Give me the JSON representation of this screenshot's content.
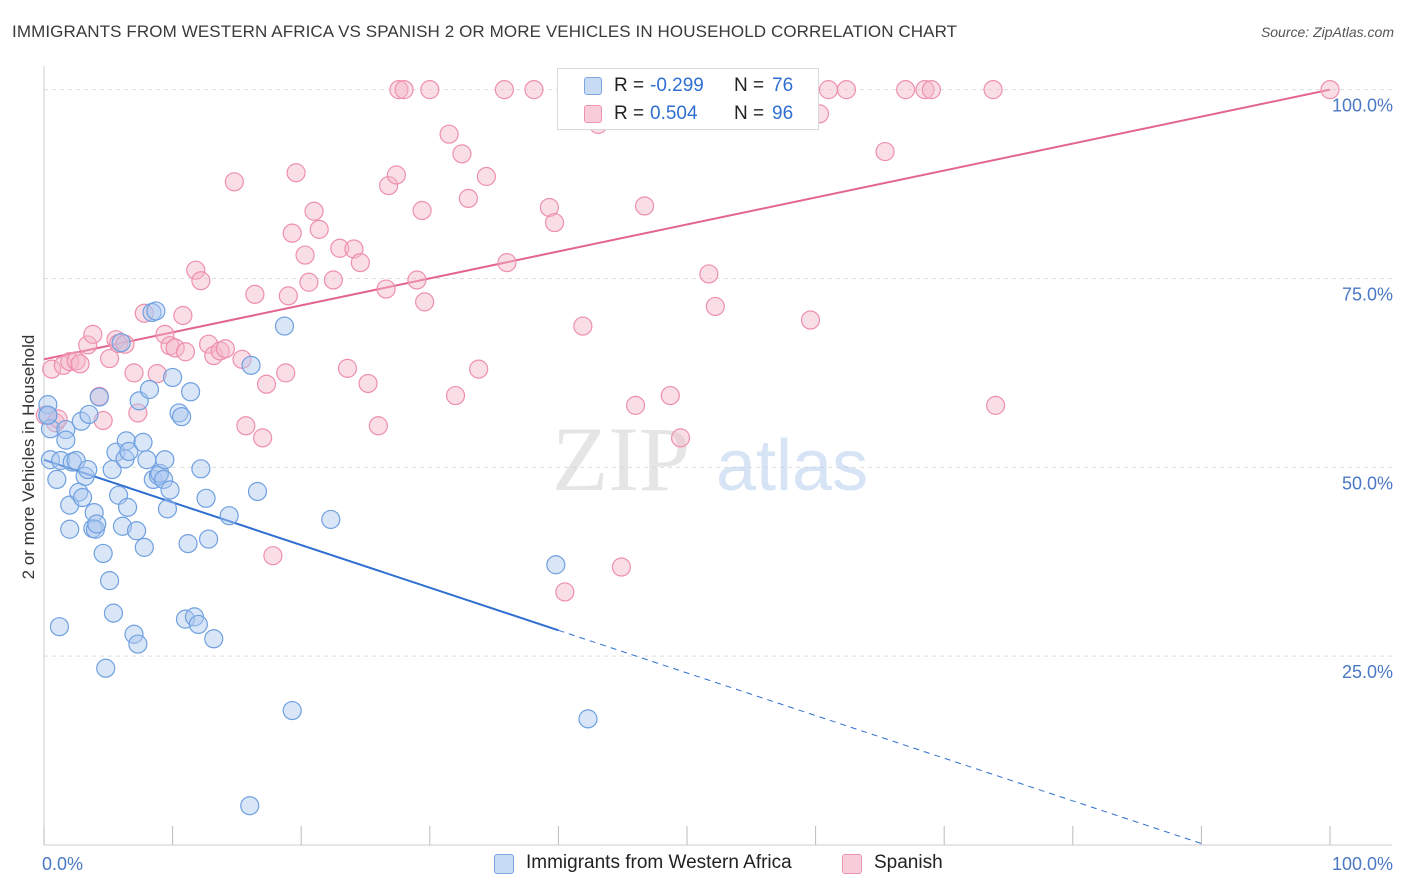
{
  "title": "IMMIGRANTS FROM WESTERN AFRICA VS SPANISH 2 OR MORE VEHICLES IN HOUSEHOLD CORRELATION CHART",
  "source": "Source: ZipAtlas.com",
  "watermark": {
    "zip": "ZIP",
    "atlas": "atlas"
  },
  "legend_top": {
    "rows": [
      {
        "r_label": "R =",
        "r_value": "-0.299",
        "n_label": "N =",
        "n_value": "76",
        "color": "#aac7ef"
      },
      {
        "r_label": "R =",
        "r_value": "0.504",
        "n_label": "N =",
        "n_value": "96",
        "color": "#f5b6c8"
      }
    ]
  },
  "legend_bottom": [
    {
      "label": "Immigrants from Western Africa",
      "color": "#aac7ef"
    },
    {
      "label": "Spanish",
      "color": "#f5b6c8"
    }
  ],
  "chart_data": {
    "type": "scatter",
    "title": "IMMIGRANTS FROM WESTERN AFRICA VS SPANISH 2 OR MORE VEHICLES IN HOUSEHOLD CORRELATION CHART",
    "xlabel": "",
    "ylabel": "2 or more Vehicles in Household",
    "xlim": [
      0,
      100
    ],
    "ylim": [
      0,
      102.6
    ],
    "x_tick_labels": [
      {
        "value": 0,
        "label": "0.0%"
      },
      {
        "value": 100,
        "label": "100.0%"
      }
    ],
    "y_tick_labels": [
      {
        "value": 25,
        "label": "25.0%"
      },
      {
        "value": 50,
        "label": "50.0%"
      },
      {
        "value": 75,
        "label": "75.0%"
      },
      {
        "value": 100,
        "label": "100.0%"
      }
    ],
    "x_minor_ticks": [
      0,
      10,
      20,
      30,
      40,
      50,
      60,
      70,
      80,
      90,
      100
    ],
    "series": [
      {
        "name": "Immigrants from Western Africa",
        "color": "#6fa0e0",
        "fill": "#aac7ef",
        "trend": {
          "x0": 0,
          "y0": 51.0,
          "x_solid_end": 40.0,
          "x1": 90.0,
          "y1": 0.2,
          "color": "#2f6fd1"
        },
        "points": [
          [
            0.3,
            58.3
          ],
          [
            0.3,
            56.9
          ],
          [
            0.5,
            55.1
          ],
          [
            0.5,
            51.0
          ],
          [
            1.0,
            48.4
          ],
          [
            1.2,
            28.9
          ],
          [
            1.3,
            50.9
          ],
          [
            1.7,
            55.0
          ],
          [
            1.7,
            53.6
          ],
          [
            2.0,
            41.8
          ],
          [
            2.0,
            45.0
          ],
          [
            2.2,
            50.7
          ],
          [
            2.5,
            50.9
          ],
          [
            2.7,
            46.7
          ],
          [
            2.9,
            56.1
          ],
          [
            3.0,
            46.0
          ],
          [
            3.2,
            48.8
          ],
          [
            3.4,
            49.7
          ],
          [
            3.5,
            57.0
          ],
          [
            3.8,
            41.9
          ],
          [
            3.9,
            44.0
          ],
          [
            4.0,
            41.8
          ],
          [
            4.1,
            42.5
          ],
          [
            4.3,
            59.3
          ],
          [
            4.6,
            38.6
          ],
          [
            4.8,
            23.4
          ],
          [
            5.1,
            35.0
          ],
          [
            5.3,
            49.7
          ],
          [
            5.4,
            30.7
          ],
          [
            5.6,
            52.0
          ],
          [
            5.8,
            46.3
          ],
          [
            6.1,
            42.2
          ],
          [
            6.3,
            51.1
          ],
          [
            6.4,
            53.5
          ],
          [
            6.5,
            44.7
          ],
          [
            6.6,
            52.1
          ],
          [
            7.0,
            27.9
          ],
          [
            7.2,
            41.6
          ],
          [
            7.3,
            26.6
          ],
          [
            7.4,
            58.8
          ],
          [
            7.7,
            53.3
          ],
          [
            7.8,
            39.4
          ],
          [
            8.0,
            51.0
          ],
          [
            8.2,
            60.3
          ],
          [
            8.4,
            70.5
          ],
          [
            8.5,
            48.4
          ],
          [
            8.7,
            70.7
          ],
          [
            8.9,
            48.9
          ],
          [
            9.0,
            49.2
          ],
          [
            9.3,
            48.4
          ],
          [
            9.4,
            51.0
          ],
          [
            9.6,
            44.5
          ],
          [
            9.8,
            47.0
          ],
          [
            10.0,
            61.9
          ],
          [
            10.5,
            57.2
          ],
          [
            10.7,
            56.7
          ],
          [
            11.0,
            29.9
          ],
          [
            11.2,
            39.9
          ],
          [
            11.4,
            60.0
          ],
          [
            11.7,
            30.2
          ],
          [
            12.0,
            29.2
          ],
          [
            12.2,
            49.8
          ],
          [
            12.6,
            45.9
          ],
          [
            12.8,
            40.5
          ],
          [
            13.2,
            27.3
          ],
          [
            14.4,
            43.6
          ],
          [
            16.0,
            5.2
          ],
          [
            16.1,
            63.5
          ],
          [
            16.6,
            46.8
          ],
          [
            18.7,
            68.7
          ],
          [
            19.3,
            17.8
          ],
          [
            22.3,
            43.1
          ],
          [
            39.8,
            37.1
          ],
          [
            42.3,
            16.7
          ],
          [
            0.3,
            56.9
          ],
          [
            6.0,
            66.5
          ]
        ]
      },
      {
        "name": "Spanish",
        "color": "#ee8fad",
        "fill": "#f5b6c8",
        "trend": {
          "x0": 0,
          "y0": 64.3,
          "x1": 100,
          "y1": 100.0,
          "color": "#e2648f"
        },
        "points": [
          [
            0.1,
            56.9
          ],
          [
            0.6,
            63.0
          ],
          [
            0.9,
            55.9
          ],
          [
            1.1,
            56.4
          ],
          [
            1.5,
            63.5
          ],
          [
            2.0,
            64.0
          ],
          [
            2.5,
            64.1
          ],
          [
            2.8,
            63.7
          ],
          [
            3.4,
            66.2
          ],
          [
            3.8,
            67.6
          ],
          [
            4.3,
            59.4
          ],
          [
            4.6,
            56.2
          ],
          [
            5.1,
            64.4
          ],
          [
            5.6,
            66.9
          ],
          [
            5.8,
            66.4
          ],
          [
            6.3,
            66.3
          ],
          [
            7.0,
            62.5
          ],
          [
            7.3,
            57.2
          ],
          [
            7.8,
            70.4
          ],
          [
            8.8,
            62.4
          ],
          [
            9.4,
            67.6
          ],
          [
            9.8,
            66.1
          ],
          [
            10.2,
            65.8
          ],
          [
            10.8,
            70.1
          ],
          [
            11.0,
            65.3
          ],
          [
            11.8,
            76.1
          ],
          [
            12.2,
            74.7
          ],
          [
            12.8,
            66.3
          ],
          [
            13.2,
            64.8
          ],
          [
            13.7,
            65.4
          ],
          [
            14.1,
            65.7
          ],
          [
            14.8,
            87.8
          ],
          [
            15.4,
            64.3
          ],
          [
            15.7,
            55.5
          ],
          [
            16.4,
            72.9
          ],
          [
            17.0,
            53.9
          ],
          [
            17.3,
            61.0
          ],
          [
            17.8,
            38.3
          ],
          [
            18.8,
            62.5
          ],
          [
            19.0,
            72.7
          ],
          [
            19.3,
            81.0
          ],
          [
            19.6,
            89.0
          ],
          [
            20.3,
            78.1
          ],
          [
            20.6,
            74.5
          ],
          [
            21.0,
            83.9
          ],
          [
            21.4,
            81.5
          ],
          [
            22.5,
            74.8
          ],
          [
            23.0,
            79.0
          ],
          [
            23.6,
            63.1
          ],
          [
            24.1,
            78.9
          ],
          [
            24.6,
            77.1
          ],
          [
            25.2,
            61.1
          ],
          [
            26.0,
            55.5
          ],
          [
            26.6,
            73.6
          ],
          [
            26.8,
            87.3
          ],
          [
            27.4,
            88.7
          ],
          [
            27.6,
            100.0
          ],
          [
            28.0,
            100.0
          ],
          [
            29.0,
            74.8
          ],
          [
            29.4,
            84.0
          ],
          [
            29.6,
            71.9
          ],
          [
            30.0,
            100.0
          ],
          [
            31.5,
            94.1
          ],
          [
            32.0,
            59.5
          ],
          [
            32.5,
            91.5
          ],
          [
            33.0,
            85.6
          ],
          [
            33.8,
            63.0
          ],
          [
            34.4,
            88.5
          ],
          [
            35.8,
            100.0
          ],
          [
            36.0,
            77.1
          ],
          [
            38.1,
            100.0
          ],
          [
            39.3,
            84.4
          ],
          [
            39.7,
            82.4
          ],
          [
            40.5,
            33.5
          ],
          [
            41.9,
            68.7
          ],
          [
            43.1,
            95.4
          ],
          [
            44.9,
            36.8
          ],
          [
            46.0,
            58.2
          ],
          [
            46.7,
            84.6
          ],
          [
            48.7,
            59.5
          ],
          [
            49.5,
            53.9
          ],
          [
            51.7,
            75.6
          ],
          [
            52.2,
            71.3
          ],
          [
            54.0,
            100.0
          ],
          [
            55.0,
            100.0
          ],
          [
            59.6,
            69.5
          ],
          [
            60.3,
            96.8
          ],
          [
            61.0,
            100.0
          ],
          [
            62.4,
            100.0
          ],
          [
            65.4,
            91.8
          ],
          [
            67.0,
            100.0
          ],
          [
            68.5,
            100.0
          ],
          [
            69.0,
            100.0
          ],
          [
            73.8,
            100.0
          ],
          [
            74.0,
            58.2
          ],
          [
            100.0,
            100.0
          ]
        ]
      }
    ]
  }
}
